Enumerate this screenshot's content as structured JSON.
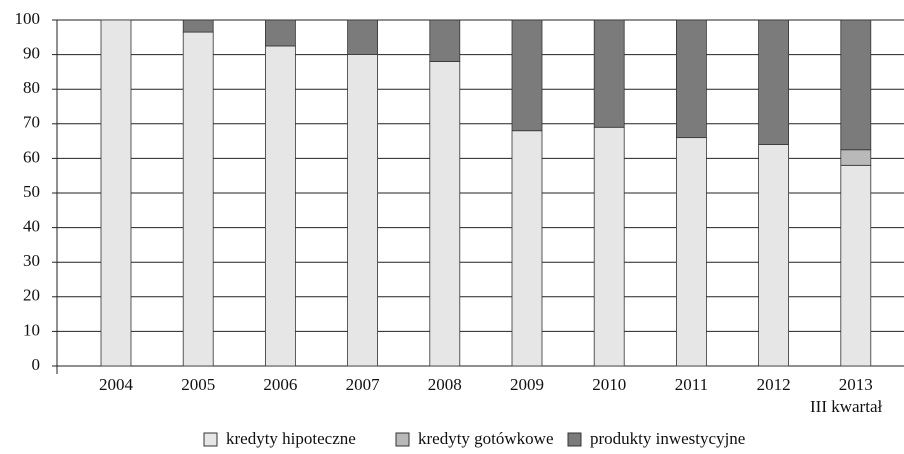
{
  "chart_data": {
    "type": "stacked_bar",
    "categories": [
      "2004",
      "2005",
      "2006",
      "2007",
      "2008",
      "2009",
      "2010",
      "2011",
      "2012",
      "2013"
    ],
    "annotation": "III kwartał",
    "series": [
      {
        "name": "kredyty hipoteczne",
        "color": "#e6e6e6",
        "values": [
          100,
          96.5,
          92.5,
          90,
          88,
          68,
          69,
          66,
          64,
          58
        ]
      },
      {
        "name": "kredyty gotówkowe",
        "color": "#b9b9b9",
        "values": [
          0,
          0,
          0,
          0,
          0,
          0,
          0,
          0,
          0,
          4.5
        ]
      },
      {
        "name": "produkty inwestycyjne",
        "color": "#7b7b7b",
        "values": [
          0,
          3.5,
          7.5,
          10,
          12,
          32,
          31,
          34,
          36,
          37.5
        ]
      }
    ],
    "ylim": [
      0,
      100
    ],
    "yticks": [
      0,
      10,
      20,
      30,
      40,
      50,
      60,
      70,
      80,
      90,
      100
    ],
    "grid": true
  }
}
